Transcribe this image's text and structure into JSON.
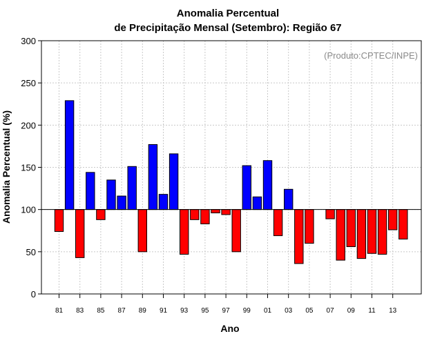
{
  "chart_data": {
    "type": "bar",
    "title": "Anomalia Percentual",
    "subtitle": "de Precipitação Mensal (Setembro): Região 67",
    "xlabel": "Ano",
    "ylabel": "Anomalia Percentual (%)",
    "source_note": "(Produto:CPTEC/INPE)",
    "baseline": 100,
    "ylim": [
      0,
      300
    ],
    "yticks": [
      0,
      50,
      100,
      150,
      200,
      250,
      300
    ],
    "grid": true,
    "categories": [
      "81",
      "82",
      "83",
      "84",
      "85",
      "86",
      "87",
      "88",
      "89",
      "90",
      "91",
      "92",
      "93",
      "94",
      "95",
      "96",
      "97",
      "98",
      "99",
      "00",
      "01",
      "02",
      "03",
      "04",
      "05",
      "06",
      "07",
      "08",
      "09",
      "10",
      "11",
      "12",
      "13",
      "14"
    ],
    "xtick_labels": [
      "81",
      "83",
      "85",
      "87",
      "89",
      "91",
      "93",
      "95",
      "97",
      "99",
      "01",
      "03",
      "05",
      "07",
      "09",
      "11",
      "13"
    ],
    "values": [
      74,
      229,
      43,
      144,
      88,
      135,
      116,
      151,
      50,
      177,
      118,
      166,
      47,
      88,
      83,
      96,
      94,
      50,
      152,
      115,
      158,
      69,
      124,
      36,
      60,
      null,
      89,
      40,
      56,
      42,
      48,
      47,
      76,
      65
    ],
    "colors": {
      "above": "#0000ff",
      "below": "#ff0000",
      "grid": "#c8c8c8"
    }
  }
}
